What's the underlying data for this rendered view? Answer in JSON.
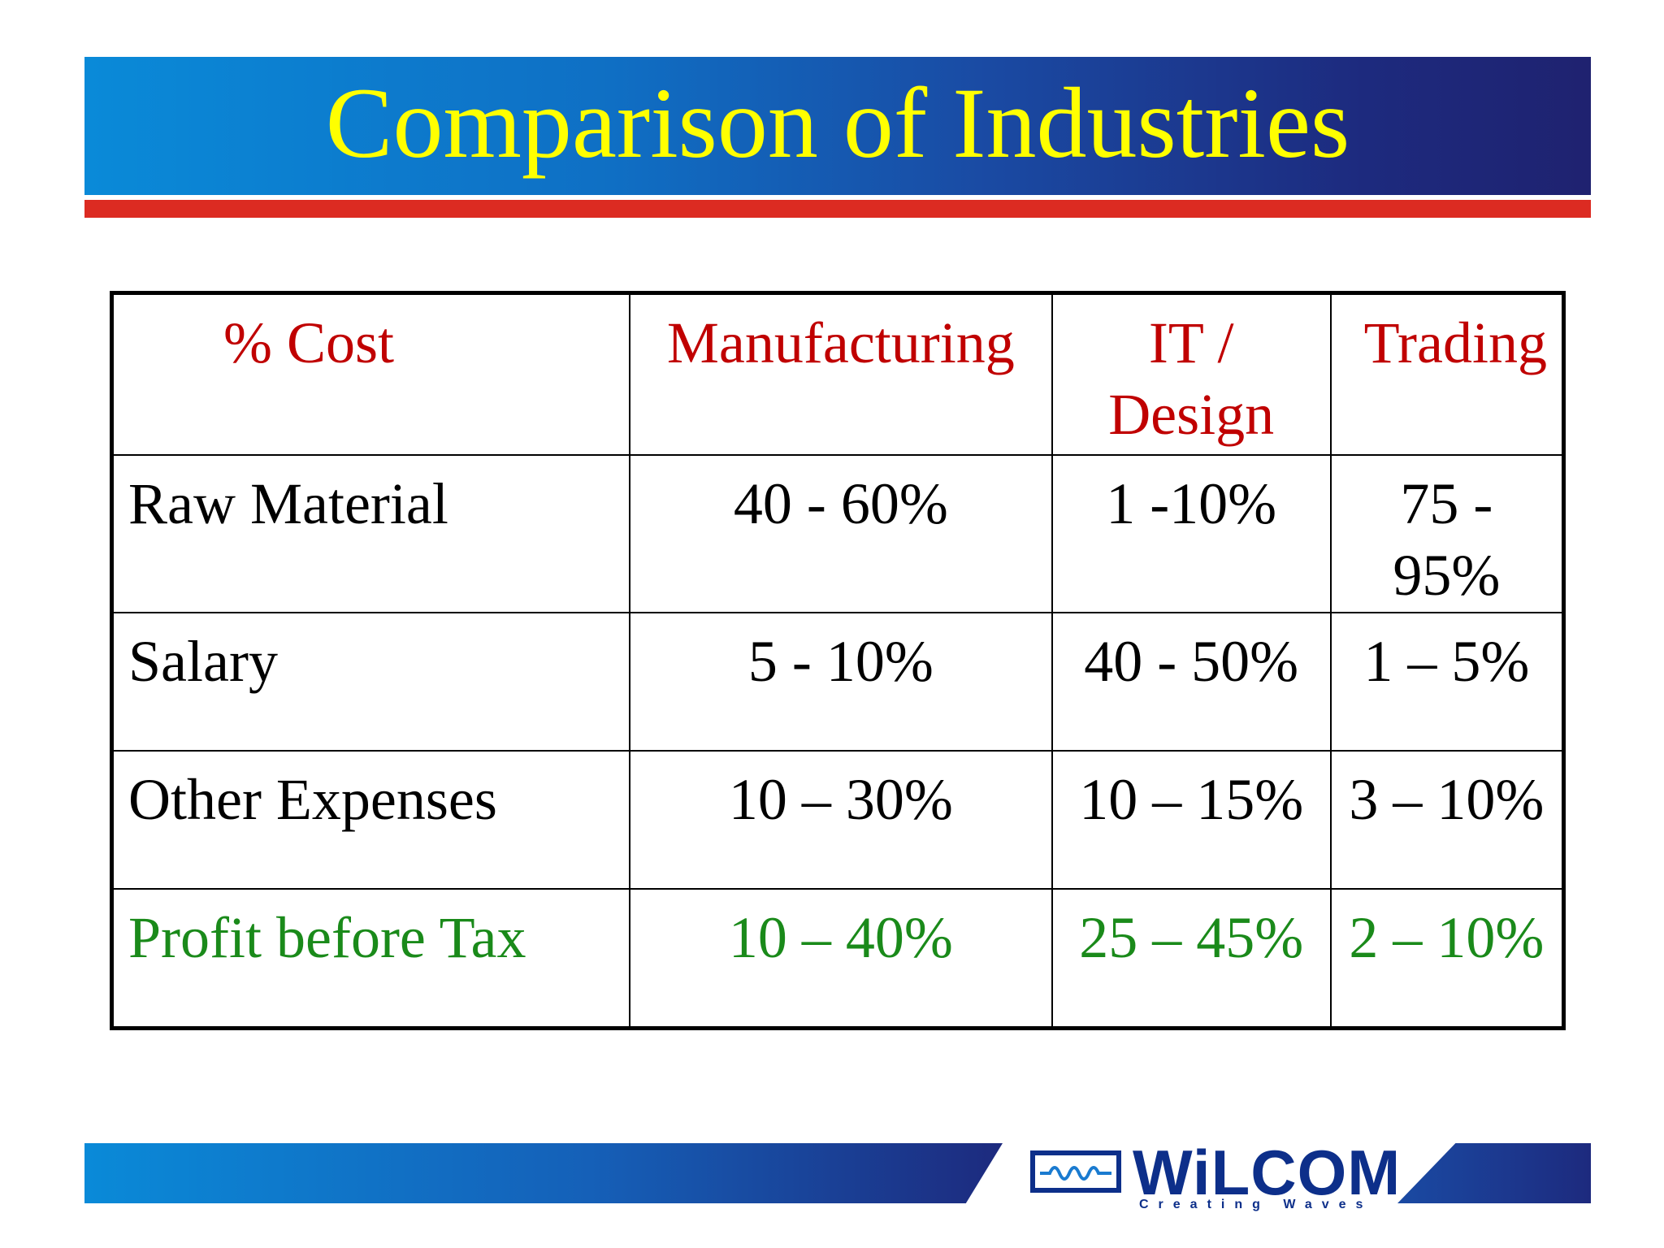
{
  "slide": {
    "title": "Comparison of Industries"
  },
  "table": {
    "headers": [
      "% Cost",
      "Manufacturing",
      "IT /\nDesign",
      "Trading"
    ],
    "rows": [
      {
        "label": "Raw Material",
        "values": [
          "40 - 60%",
          "1 -10%",
          "75 - 95%"
        ]
      },
      {
        "label": "Salary",
        "values": [
          "5 - 10%",
          "40 - 50%",
          "1 – 5%"
        ]
      },
      {
        "label": "Other Expenses",
        "values": [
          "10 – 30%",
          "10 – 15%",
          "3 – 10%"
        ]
      },
      {
        "label": "Profit before Tax",
        "values": [
          "10 – 40%",
          "25 – 45%",
          "2 – 10%"
        ]
      }
    ]
  },
  "logo": {
    "name": "WiLCOM",
    "tagline": "Creating Waves"
  },
  "colors": {
    "title_text": "#ffff00",
    "header_text": "#c00000",
    "profit_text": "#1a8a1a",
    "accent_bar": "#dc2b22",
    "brand_blue": "#0d2f8a"
  }
}
